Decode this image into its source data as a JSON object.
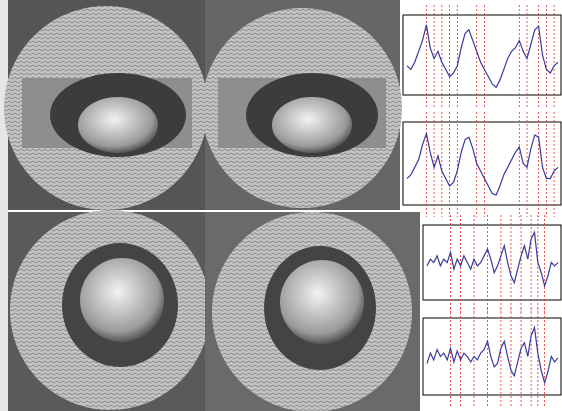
{
  "chart_data": [
    {
      "type": "line",
      "color": "#3a3a9a",
      "vline_color": "#e03030",
      "ylim": [
        0,
        1
      ],
      "values": [
        0.35,
        0.3,
        0.4,
        0.55,
        0.7,
        0.92,
        0.6,
        0.45,
        0.55,
        0.4,
        0.3,
        0.2,
        0.25,
        0.35,
        0.6,
        0.8,
        0.85,
        0.7,
        0.55,
        0.4,
        0.3,
        0.2,
        0.1,
        0.05,
        0.15,
        0.3,
        0.45,
        0.55,
        0.6,
        0.7,
        0.55,
        0.45,
        0.65,
        0.85,
        0.9,
        0.5,
        0.3,
        0.25,
        0.35,
        0.4
      ],
      "vlines": [
        5,
        7,
        9,
        11,
        13,
        18,
        20,
        29,
        31,
        34,
        36,
        38
      ]
    },
    {
      "type": "line",
      "color": "#3a3a9a",
      "vline_color": "#e03030",
      "ylim": [
        0,
        1
      ],
      "values": [
        0.3,
        0.35,
        0.45,
        0.55,
        0.75,
        0.9,
        0.65,
        0.45,
        0.6,
        0.4,
        0.3,
        0.2,
        0.25,
        0.4,
        0.65,
        0.82,
        0.85,
        0.7,
        0.5,
        0.4,
        0.3,
        0.2,
        0.1,
        0.08,
        0.2,
        0.35,
        0.45,
        0.55,
        0.65,
        0.72,
        0.5,
        0.45,
        0.7,
        0.88,
        0.85,
        0.45,
        0.3,
        0.3,
        0.4,
        0.45
      ],
      "vlines": [
        5,
        7,
        9,
        11,
        13,
        18,
        20,
        29,
        31,
        34,
        36,
        38
      ]
    },
    {
      "type": "line",
      "color": "#3a3a9a",
      "vline_color": "#e03030",
      "ylim": [
        0,
        1
      ],
      "values": [
        0.45,
        0.55,
        0.5,
        0.6,
        0.45,
        0.55,
        0.5,
        0.65,
        0.4,
        0.55,
        0.45,
        0.6,
        0.5,
        0.4,
        0.55,
        0.45,
        0.5,
        0.6,
        0.7,
        0.55,
        0.35,
        0.45,
        0.6,
        0.75,
        0.5,
        0.3,
        0.2,
        0.4,
        0.6,
        0.75,
        0.55,
        0.85,
        0.95,
        0.5,
        0.35,
        0.15,
        0.3,
        0.5,
        0.45,
        0.5
      ],
      "vlines": [
        7,
        10,
        14,
        18,
        22,
        25,
        28,
        31,
        33,
        35
      ]
    },
    {
      "type": "line",
      "color": "#3a3a9a",
      "vline_color": "#e03030",
      "ylim": [
        0,
        1
      ],
      "values": [
        0.4,
        0.55,
        0.45,
        0.6,
        0.5,
        0.55,
        0.45,
        0.62,
        0.42,
        0.58,
        0.45,
        0.55,
        0.5,
        0.42,
        0.5,
        0.45,
        0.55,
        0.6,
        0.72,
        0.5,
        0.35,
        0.4,
        0.62,
        0.72,
        0.5,
        0.3,
        0.22,
        0.42,
        0.62,
        0.7,
        0.5,
        0.8,
        0.92,
        0.55,
        0.3,
        0.12,
        0.28,
        0.5,
        0.42,
        0.48
      ],
      "vlines": [
        7,
        10,
        14,
        18,
        22,
        25,
        28,
        31,
        33,
        35
      ]
    }
  ]
}
